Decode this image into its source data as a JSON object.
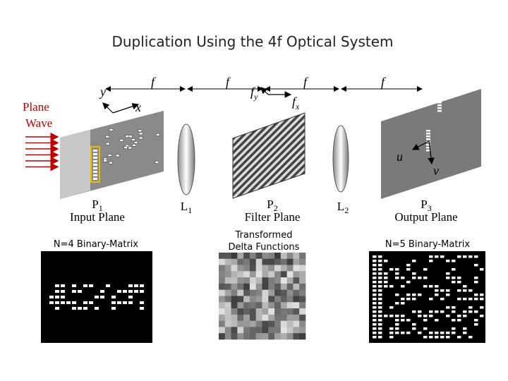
{
  "title": "Duplication Using the 4f Optical System",
  "source": {
    "label": [
      "Plane",
      "Wave"
    ]
  },
  "axes": {
    "input_y": "y",
    "input_x": "x",
    "filter_y": {
      "main": "f",
      "sub": "y"
    },
    "filter_x": {
      "main": "f",
      "sub": "x"
    },
    "output_u": "u",
    "output_v": "v"
  },
  "distances": [
    "f",
    "f",
    "f",
    "f"
  ],
  "planes": [
    {
      "symbol": {
        "main": "P",
        "sub": "1"
      },
      "name": "Input Plane"
    },
    {
      "symbol": {
        "main": "P",
        "sub": "2"
      },
      "name": "Filter Plane"
    },
    {
      "symbol": {
        "main": "P",
        "sub": "3"
      },
      "name": "Output Plane"
    }
  ],
  "lenses": [
    {
      "main": "L",
      "sub": "1"
    },
    {
      "main": "L",
      "sub": "2"
    }
  ],
  "images": [
    {
      "caption": [
        "N=4 Binary-Matrix"
      ]
    },
    {
      "caption": [
        "Transformed",
        "Delta Functions"
      ]
    },
    {
      "caption": [
        "N=5 Binary-Matrix"
      ]
    }
  ]
}
